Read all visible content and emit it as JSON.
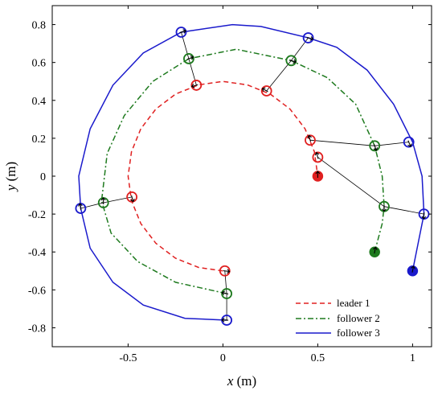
{
  "chart_data": {
    "type": "line",
    "xlabel_var": "x",
    "xlabel_unit": " (m)",
    "ylabel_var": "y",
    "ylabel_unit": " (m)",
    "xlim": [
      -0.9,
      1.1
    ],
    "ylim": [
      -0.9,
      0.9
    ],
    "xticks": [
      -0.5,
      0,
      0.5,
      1
    ],
    "xtick_labels": [
      "-0.5",
      "0",
      "0.5",
      "1"
    ],
    "yticks": [
      -0.8,
      -0.6,
      -0.4,
      -0.2,
      0,
      0.2,
      0.4,
      0.6,
      0.8
    ],
    "ytick_labels": [
      "-0.8",
      "-0.6",
      "-0.4",
      "-0.2",
      "0",
      "0.2",
      "0.4",
      "0.6",
      "0.8"
    ],
    "grid": false,
    "legend_position": "bottom-right",
    "series": [
      {
        "name": "leader 1",
        "color": "#e02020",
        "style": "dashed",
        "trajectory": [
          [
            0.0,
            -0.5
          ],
          [
            -0.128,
            -0.482
          ],
          [
            -0.25,
            -0.433
          ],
          [
            -0.354,
            -0.354
          ],
          [
            -0.433,
            -0.25
          ],
          [
            -0.482,
            -0.129
          ],
          [
            -0.5,
            0.0
          ],
          [
            -0.482,
            0.129
          ],
          [
            -0.433,
            0.25
          ],
          [
            -0.354,
            0.354
          ],
          [
            -0.25,
            0.433
          ],
          [
            -0.129,
            0.482
          ],
          [
            0.0,
            0.5
          ],
          [
            0.129,
            0.482
          ],
          [
            0.25,
            0.433
          ],
          [
            0.354,
            0.354
          ],
          [
            0.433,
            0.25
          ],
          [
            0.482,
            0.129
          ],
          [
            0.5,
            0.0
          ]
        ],
        "start": [
          0.5,
          0.0
        ],
        "waypoints": [
          [
            0.5,
            0.1
          ],
          [
            0.46,
            0.19
          ],
          [
            0.23,
            0.45
          ],
          [
            -0.14,
            0.48
          ],
          [
            -0.48,
            -0.11
          ],
          [
            0.01,
            -0.5
          ]
        ]
      },
      {
        "name": "follower 2",
        "color": "#1e7a1e",
        "style": "dashdot",
        "trajectory": [
          [
            0.8,
            -0.4
          ],
          [
            0.84,
            -0.25
          ],
          [
            0.85,
            -0.16
          ],
          [
            0.84,
            0.0
          ],
          [
            0.8,
            0.16
          ],
          [
            0.7,
            0.38
          ],
          [
            0.55,
            0.52
          ],
          [
            0.36,
            0.61
          ],
          [
            0.07,
            0.67
          ],
          [
            -0.18,
            0.62
          ],
          [
            -0.37,
            0.5
          ],
          [
            -0.52,
            0.32
          ],
          [
            -0.61,
            0.12
          ],
          [
            -0.64,
            -0.13
          ],
          [
            -0.59,
            -0.3
          ],
          [
            -0.45,
            -0.45
          ],
          [
            -0.25,
            -0.56
          ],
          [
            0.02,
            -0.62
          ]
        ],
        "start": [
          0.8,
          -0.4
        ],
        "waypoints": [
          [
            0.85,
            -0.16
          ],
          [
            0.8,
            0.16
          ],
          [
            0.36,
            0.61
          ],
          [
            -0.18,
            0.62
          ],
          [
            -0.63,
            -0.14
          ],
          [
            0.02,
            -0.62
          ]
        ]
      },
      {
        "name": "follower 3",
        "color": "#1a1acc",
        "style": "solid",
        "trajectory": [
          [
            1.0,
            -0.5
          ],
          [
            1.03,
            -0.35
          ],
          [
            1.06,
            -0.2
          ],
          [
            1.05,
            0.0
          ],
          [
            1.0,
            0.18
          ],
          [
            0.9,
            0.38
          ],
          [
            0.76,
            0.56
          ],
          [
            0.6,
            0.68
          ],
          [
            0.45,
            0.73
          ],
          [
            0.2,
            0.79
          ],
          [
            0.05,
            0.8
          ],
          [
            -0.22,
            0.76
          ],
          [
            -0.42,
            0.65
          ],
          [
            -0.58,
            0.48
          ],
          [
            -0.7,
            0.25
          ],
          [
            -0.76,
            0.0
          ],
          [
            -0.75,
            -0.17
          ],
          [
            -0.7,
            -0.38
          ],
          [
            -0.58,
            -0.56
          ],
          [
            -0.42,
            -0.68
          ],
          [
            -0.2,
            -0.75
          ],
          [
            0.02,
            -0.76
          ]
        ],
        "start": [
          1.0,
          -0.5
        ],
        "waypoints": [
          [
            1.06,
            -0.2
          ],
          [
            0.98,
            0.18
          ],
          [
            0.45,
            0.73
          ],
          [
            -0.22,
            0.76
          ],
          [
            -0.75,
            -0.17
          ],
          [
            0.02,
            -0.76
          ]
        ]
      }
    ],
    "connection_groups": [
      [
        [
          0.5,
          0.1
        ],
        [
          0.85,
          -0.16
        ],
        [
          1.06,
          -0.2
        ]
      ],
      [
        [
          0.46,
          0.19
        ],
        [
          0.8,
          0.16
        ],
        [
          0.98,
          0.18
        ]
      ],
      [
        [
          0.23,
          0.45
        ],
        [
          0.36,
          0.61
        ],
        [
          0.45,
          0.73
        ]
      ],
      [
        [
          -0.14,
          0.48
        ],
        [
          -0.18,
          0.62
        ],
        [
          -0.22,
          0.76
        ]
      ],
      [
        [
          -0.48,
          -0.11
        ],
        [
          -0.63,
          -0.14
        ],
        [
          -0.75,
          -0.17
        ]
      ],
      [
        [
          0.01,
          -0.5
        ],
        [
          0.02,
          -0.62
        ],
        [
          0.02,
          -0.76
        ]
      ]
    ]
  }
}
